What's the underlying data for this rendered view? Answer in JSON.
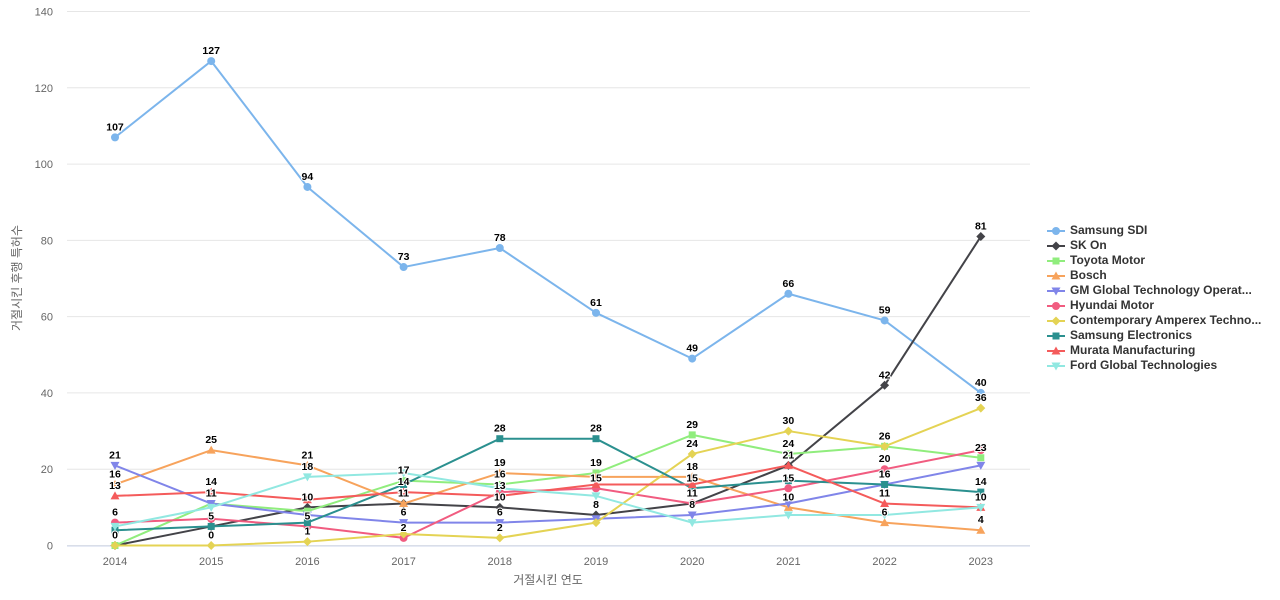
{
  "chart_data": {
    "type": "line",
    "categories": [
      "2014",
      "2015",
      "2016",
      "2017",
      "2018",
      "2019",
      "2020",
      "2021",
      "2022",
      "2023"
    ],
    "xlabel": "거절시킨 연도",
    "ylabel": "거절시킨 후행 특허수",
    "ylim": [
      0,
      140
    ],
    "yticks": [
      0,
      20,
      40,
      60,
      80,
      100,
      120,
      140
    ],
    "grid": true,
    "legend_position": "right",
    "background_color": "#ffffff",
    "gridline_color": "#e6e6e6",
    "axis_line_color": "#ccd6eb",
    "tick_label_color": "#666666",
    "series": [
      {
        "name": "Samsung SDI",
        "slug": "samsung-sdi",
        "color": "#7cb5ec",
        "marker": "circle",
        "values": [
          107,
          127,
          94,
          73,
          78,
          61,
          49,
          66,
          59,
          40
        ]
      },
      {
        "name": "SK On",
        "slug": "sk-on",
        "color": "#434348",
        "marker": "diamond",
        "values": [
          0,
          5,
          10,
          11,
          10,
          8,
          11,
          21,
          42,
          81
        ]
      },
      {
        "name": "Toyota Motor",
        "slug": "toyota-motor",
        "color": "#90ed7d",
        "marker": "square",
        "values": [
          0,
          11,
          9,
          17,
          16,
          19,
          29,
          24,
          26,
          23
        ]
      },
      {
        "name": "Bosch",
        "slug": "bosch",
        "color": "#f7a35c",
        "marker": "triangle",
        "values": [
          16,
          25,
          21,
          11,
          19,
          18,
          18,
          10,
          6,
          4
        ]
      },
      {
        "name": "GM Global Technology Operat...",
        "slug": "gm-global",
        "color": "#8085e9",
        "marker": "triangle-down",
        "values": [
          21,
          11,
          8,
          6,
          6,
          7,
          8,
          11,
          16,
          21
        ]
      },
      {
        "name": "Hyundai Motor",
        "slug": "hyundai-motor",
        "color": "#f15c80",
        "marker": "circle",
        "values": [
          6,
          7,
          5,
          2,
          14,
          15,
          11,
          15,
          20,
          25
        ]
      },
      {
        "name": "Contemporary Amperex Techno...",
        "slug": "catl",
        "color": "#e4d354",
        "marker": "diamond",
        "values": [
          0,
          0,
          1,
          3,
          2,
          6,
          24,
          30,
          26,
          36
        ]
      },
      {
        "name": "Samsung Electronics",
        "slug": "samsung-electronics",
        "color": "#2b908f",
        "marker": "square",
        "values": [
          4,
          5,
          6,
          16,
          28,
          28,
          15,
          17,
          16,
          14
        ]
      },
      {
        "name": "Murata Manufacturing",
        "slug": "murata",
        "color": "#f45b5b",
        "marker": "triangle",
        "values": [
          13,
          14,
          12,
          14,
          13,
          16,
          16,
          21,
          11,
          10
        ]
      },
      {
        "name": "Ford Global Technologies",
        "slug": "ford-global",
        "color": "#91e8e1",
        "marker": "triangle-down",
        "values": [
          5,
          10,
          18,
          19,
          15,
          13,
          6,
          8,
          8,
          10
        ]
      }
    ]
  }
}
